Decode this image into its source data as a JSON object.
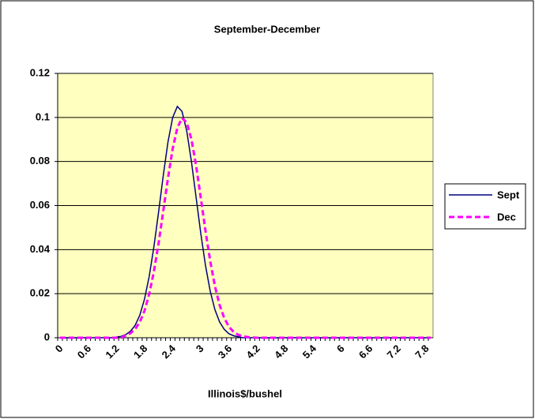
{
  "chart_data": {
    "type": "line",
    "title": "September-December",
    "x_label": "Illinois$/bushel",
    "categories": [
      0,
      null,
      null,
      null,
      null,
      null,
      0.6,
      null,
      null,
      null,
      null,
      null,
      1.2,
      null,
      null,
      null,
      null,
      null,
      1.8,
      null,
      null,
      null,
      null,
      null,
      2.4,
      null,
      null,
      null,
      null,
      null,
      3,
      null,
      null,
      null,
      null,
      null,
      3.6,
      null,
      null,
      null,
      null,
      null,
      4.2,
      null,
      null,
      null,
      null,
      null,
      4.8,
      null,
      null,
      null,
      null,
      null,
      5.4,
      null,
      null,
      null,
      null,
      null,
      6,
      null,
      null,
      null,
      null,
      null,
      6.6,
      null,
      null,
      null,
      null,
      null,
      7.2,
      null,
      null,
      null,
      null,
      null,
      7.8,
      null
    ],
    "series": [
      {
        "name": "Sept",
        "color": "#000080",
        "style": "solid",
        "values": [
          0,
          0,
          0,
          0,
          0,
          0,
          0,
          0,
          0,
          0,
          0,
          0,
          0.0003,
          0.0006,
          0.0014,
          0.0029,
          0.0056,
          0.0102,
          0.0175,
          0.0278,
          0.0412,
          0.057,
          0.0736,
          0.0888,
          0.0999,
          0.105,
          0.1027,
          0.0939,
          0.08,
          0.0637,
          0.0473,
          0.0328,
          0.0212,
          0.0128,
          0.0072,
          0.0038,
          0.0018,
          0.0009,
          0.0004,
          0,
          0,
          0,
          0,
          0,
          0,
          0,
          0,
          0,
          0,
          0,
          0,
          0,
          0,
          0,
          0,
          0,
          0,
          0,
          0,
          0,
          0,
          0,
          0,
          0,
          0,
          0,
          0,
          0,
          0,
          0,
          0,
          0,
          0,
          0,
          0,
          0,
          0,
          0,
          0,
          0
        ]
      },
      {
        "name": "Dec",
        "color": "#ff00ff",
        "style": "dashed",
        "values": [
          0,
          0,
          0,
          0,
          0,
          0,
          0,
          0,
          0,
          0,
          0,
          0,
          0,
          0,
          0.001,
          0.002,
          0.0039,
          0.0071,
          0.0122,
          0.0197,
          0.03,
          0.0428,
          0.0575,
          0.0724,
          0.0857,
          0.0953,
          0.0997,
          0.0977,
          0.0901,
          0.0781,
          0.0635,
          0.0485,
          0.0349,
          0.0235,
          0.0149,
          0.0089,
          0.005,
          0.0026,
          0.0013,
          0.0006,
          0.0003,
          0.0001,
          0,
          0,
          0,
          0,
          0,
          0,
          0,
          0,
          0,
          0,
          0,
          0,
          0,
          0,
          0,
          0,
          0,
          0,
          0,
          0,
          0,
          0,
          0,
          0,
          0,
          0,
          0,
          0,
          0,
          0,
          0,
          0,
          0,
          0,
          0,
          0,
          0,
          0
        ]
      }
    ],
    "ylim": [
      0,
      0.12
    ],
    "yticks": [
      0,
      0.02,
      0.04,
      0.06,
      0.08,
      0.1,
      0.12
    ],
    "grid": true,
    "plot_background": "#ffffc0",
    "legend": "right"
  }
}
